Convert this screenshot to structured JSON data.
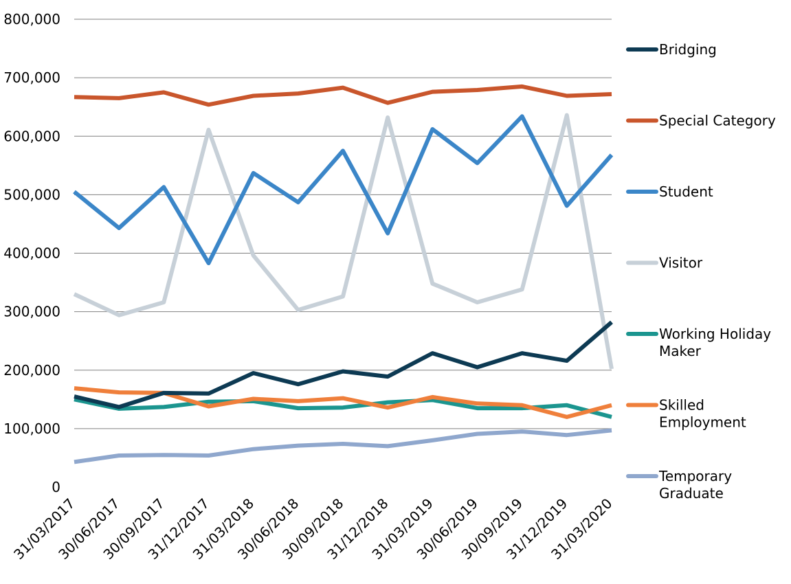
{
  "chart_data": {
    "type": "line",
    "title": "",
    "xlabel": "",
    "ylabel": "",
    "ylim": [
      0,
      800000
    ],
    "yticks": [
      0,
      100000,
      200000,
      300000,
      400000,
      500000,
      600000,
      700000,
      800000
    ],
    "ytick_labels": [
      "0",
      "100,000",
      "200,000",
      "300,000",
      "400,000",
      "500,000",
      "600,000",
      "700,000",
      "800,000"
    ],
    "grid": true,
    "legend_position": "right",
    "categories": [
      "31/03/2017",
      "30/06/2017",
      "30/09/2017",
      "31/12/2017",
      "31/03/2018",
      "30/06/2018",
      "30/09/2018",
      "31/12/2018",
      "31/03/2019",
      "30/06/2019",
      "30/09/2019",
      "31/12/2019",
      "31/03/2020"
    ],
    "series": [
      {
        "name": "Bridging",
        "legend_lines": [
          "Bridging"
        ],
        "color": "#0d3a53",
        "values": [
          155000,
          137000,
          161000,
          160000,
          195000,
          176000,
          198000,
          189000,
          229000,
          205000,
          229000,
          216000,
          282000
        ]
      },
      {
        "name": "Special Category",
        "legend_lines": [
          "Special Category"
        ],
        "color": "#c9562c",
        "values": [
          667000,
          665000,
          675000,
          654000,
          669000,
          673000,
          683000,
          657000,
          676000,
          679000,
          685000,
          669000,
          672000
        ]
      },
      {
        "name": "Student",
        "legend_lines": [
          "Student"
        ],
        "color": "#3b86c8",
        "values": [
          505000,
          443000,
          513000,
          383000,
          537000,
          487000,
          575000,
          434000,
          612000,
          554000,
          634000,
          481000,
          568000
        ]
      },
      {
        "name": "Visitor",
        "legend_lines": [
          "Visitor"
        ],
        "color": "#c7d0d8",
        "values": [
          330000,
          294000,
          316000,
          611000,
          396000,
          303000,
          326000,
          632000,
          348000,
          316000,
          338000,
          636000,
          202000
        ]
      },
      {
        "name": "Working Holiday Maker",
        "legend_lines": [
          "Working Holiday",
          "Maker"
        ],
        "color": "#1b958f",
        "values": [
          150000,
          134000,
          137000,
          146000,
          147000,
          135000,
          136000,
          145000,
          149000,
          135000,
          135000,
          140000,
          120000
        ]
      },
      {
        "name": "Skilled Employment",
        "legend_lines": [
          "Skilled",
          "Employment"
        ],
        "color": "#ef7f3b",
        "values": [
          169000,
          162000,
          161000,
          138000,
          151000,
          147000,
          152000,
          136000,
          154000,
          143000,
          140000,
          120000,
          140000
        ]
      },
      {
        "name": "Temporary Graduate",
        "legend_lines": [
          "Temporary",
          "Graduate"
        ],
        "color": "#8fa7cd",
        "values": [
          43000,
          54000,
          55000,
          54000,
          65000,
          71000,
          74000,
          70000,
          80000,
          91000,
          95000,
          89000,
          97000
        ]
      }
    ]
  }
}
